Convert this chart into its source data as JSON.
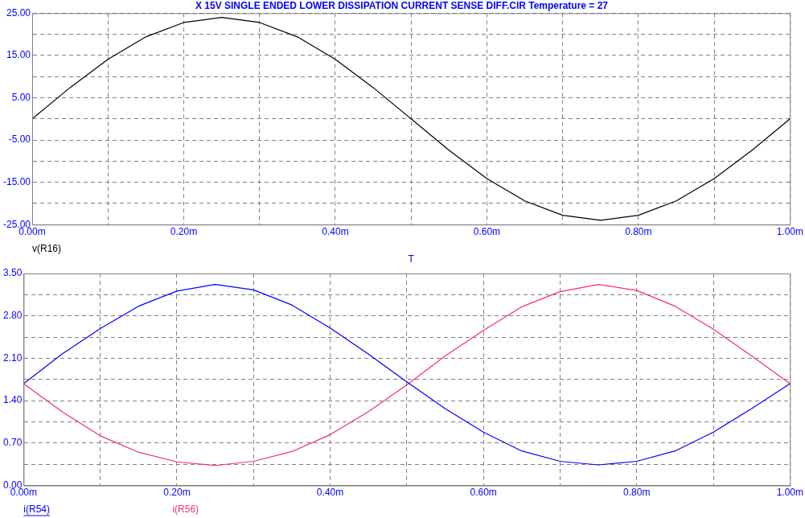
{
  "chart_data": [
    {
      "type": "line",
      "title": "X 15V SINGLE ENDED LOWER DISSIPATION CURRENT SENSE DIFF.CIR Temperature = 27",
      "xlabel": "T",
      "x": [
        0,
        0.05,
        0.1,
        0.15,
        0.2,
        0.25,
        0.3,
        0.35,
        0.4,
        0.45,
        0.5,
        0.55,
        0.6,
        0.65,
        0.7,
        0.75,
        0.8,
        0.85,
        0.9,
        0.95,
        1.0
      ],
      "series": [
        {
          "name": "v(R16)",
          "color": "#000000",
          "values": [
            0,
            7.4,
            14.1,
            19.4,
            22.8,
            24,
            22.8,
            19.4,
            14.1,
            7.4,
            0,
            -7.4,
            -14.1,
            -19.4,
            -22.8,
            -24,
            -22.8,
            -19.4,
            -14.1,
            -7.4,
            0
          ]
        }
      ],
      "xlim": [
        0,
        1.0
      ],
      "xticks": [
        {
          "value": 0,
          "label": "0.00m"
        },
        {
          "value": 0.1,
          "label": null
        },
        {
          "value": 0.2,
          "label": "0.20m"
        },
        {
          "value": 0.3,
          "label": null
        },
        {
          "value": 0.4,
          "label": "0.40m"
        },
        {
          "value": 0.5,
          "label": null
        },
        {
          "value": 0.6,
          "label": "0.60m"
        },
        {
          "value": 0.7,
          "label": null
        },
        {
          "value": 0.8,
          "label": "0.80m"
        },
        {
          "value": 0.9,
          "label": null
        },
        {
          "value": 1.0,
          "label": "1.00m"
        }
      ],
      "ylim": [
        -25,
        25
      ],
      "yticks": [
        {
          "value": -25,
          "label": "-25.00"
        },
        {
          "value": -20,
          "label": null
        },
        {
          "value": -15,
          "label": "-15.00"
        },
        {
          "value": -10,
          "label": null
        },
        {
          "value": -5,
          "label": "-5.00"
        },
        {
          "value": 0,
          "label": null
        },
        {
          "value": 5,
          "label": "5.00"
        },
        {
          "value": 10,
          "label": null
        },
        {
          "value": 15,
          "label": "15.00"
        },
        {
          "value": 20,
          "label": null
        },
        {
          "value": 25,
          "label": "25.00"
        }
      ],
      "grid": true,
      "legend": "bottom left"
    },
    {
      "type": "line",
      "x": [
        0,
        0.05,
        0.1,
        0.15,
        0.2,
        0.25,
        0.3,
        0.35,
        0.4,
        0.45,
        0.5,
        0.55,
        0.6,
        0.65,
        0.7,
        0.75,
        0.8,
        0.85,
        0.9,
        0.95,
        1.0
      ],
      "series": [
        {
          "name": "i(R54)",
          "color": "#0000ff",
          "values": [
            1.68,
            2.17,
            2.59,
            2.96,
            3.21,
            3.32,
            3.23,
            2.98,
            2.6,
            2.17,
            1.71,
            1.27,
            0.88,
            0.57,
            0.4,
            0.34,
            0.4,
            0.57,
            0.88,
            1.27,
            1.68
          ]
        },
        {
          "name": "i(R56)",
          "color": "#f0306a",
          "values": [
            1.68,
            1.22,
            0.82,
            0.55,
            0.39,
            0.33,
            0.4,
            0.56,
            0.84,
            1.22,
            1.66,
            2.14,
            2.56,
            2.95,
            3.2,
            3.32,
            3.22,
            2.96,
            2.58,
            2.14,
            1.68
          ]
        }
      ],
      "xlim": [
        0,
        1.0
      ],
      "xticks": [
        {
          "value": 0,
          "label": "0.00m"
        },
        {
          "value": 0.1,
          "label": null
        },
        {
          "value": 0.2,
          "label": "0.20m"
        },
        {
          "value": 0.3,
          "label": null
        },
        {
          "value": 0.4,
          "label": "0.40m"
        },
        {
          "value": 0.5,
          "label": null
        },
        {
          "value": 0.6,
          "label": "0.60m"
        },
        {
          "value": 0.7,
          "label": null
        },
        {
          "value": 0.8,
          "label": "0.80m"
        },
        {
          "value": 0.9,
          "label": null
        },
        {
          "value": 1.0,
          "label": "1.00m"
        }
      ],
      "ylim": [
        0,
        3.5
      ],
      "yticks": [
        {
          "value": 0,
          "label": "0.00"
        },
        {
          "value": 0.35,
          "label": null
        },
        {
          "value": 0.7,
          "label": "0.70"
        },
        {
          "value": 1.05,
          "label": null
        },
        {
          "value": 1.4,
          "label": "1.40"
        },
        {
          "value": 1.75,
          "label": null
        },
        {
          "value": 2.1,
          "label": "2.10"
        },
        {
          "value": 2.45,
          "label": null
        },
        {
          "value": 2.8,
          "label": "2.80"
        },
        {
          "value": 3.15,
          "label": null
        },
        {
          "value": 3.5,
          "label": "3.50"
        }
      ],
      "grid": true,
      "legend": "bottom left"
    }
  ]
}
